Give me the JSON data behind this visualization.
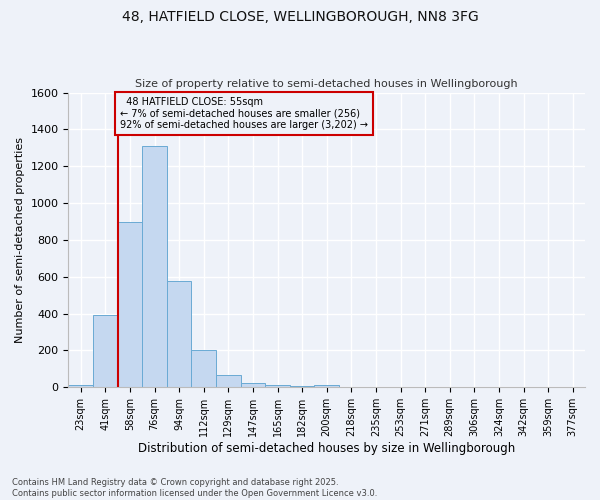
{
  "title_line1": "48, HATFIELD CLOSE, WELLINGBOROUGH, NN8 3FG",
  "title_line2": "Size of property relative to semi-detached houses in Wellingborough",
  "xlabel": "Distribution of semi-detached houses by size in Wellingborough",
  "ylabel": "Number of semi-detached properties",
  "bins": [
    "23sqm",
    "41sqm",
    "58sqm",
    "76sqm",
    "94sqm",
    "112sqm",
    "129sqm",
    "147sqm",
    "165sqm",
    "182sqm",
    "200sqm",
    "218sqm",
    "235sqm",
    "253sqm",
    "271sqm",
    "289sqm",
    "306sqm",
    "324sqm",
    "342sqm",
    "359sqm",
    "377sqm"
  ],
  "values": [
    15,
    390,
    900,
    1310,
    575,
    200,
    65,
    25,
    15,
    8,
    12,
    0,
    0,
    0,
    0,
    0,
    0,
    0,
    0,
    0,
    0
  ],
  "bar_color": "#c5d8f0",
  "bar_edge_color": "#6aaad4",
  "vline_color": "#cc0000",
  "annotation_box_color": "#cc0000",
  "annotation_text_color": "#000000",
  "background_color": "#eef2f9",
  "grid_color": "#ffffff",
  "ylim": [
    0,
    1600
  ],
  "yticks": [
    0,
    200,
    400,
    600,
    800,
    1000,
    1200,
    1400,
    1600
  ],
  "vline_pos": 1.5,
  "property_label": "48 HATFIELD CLOSE: 55sqm",
  "pct_smaller": 7,
  "pct_larger": 92,
  "n_smaller": 256,
  "n_larger": 3202,
  "footer_line1": "Contains HM Land Registry data © Crown copyright and database right 2025.",
  "footer_line2": "Contains public sector information licensed under the Open Government Licence v3.0."
}
